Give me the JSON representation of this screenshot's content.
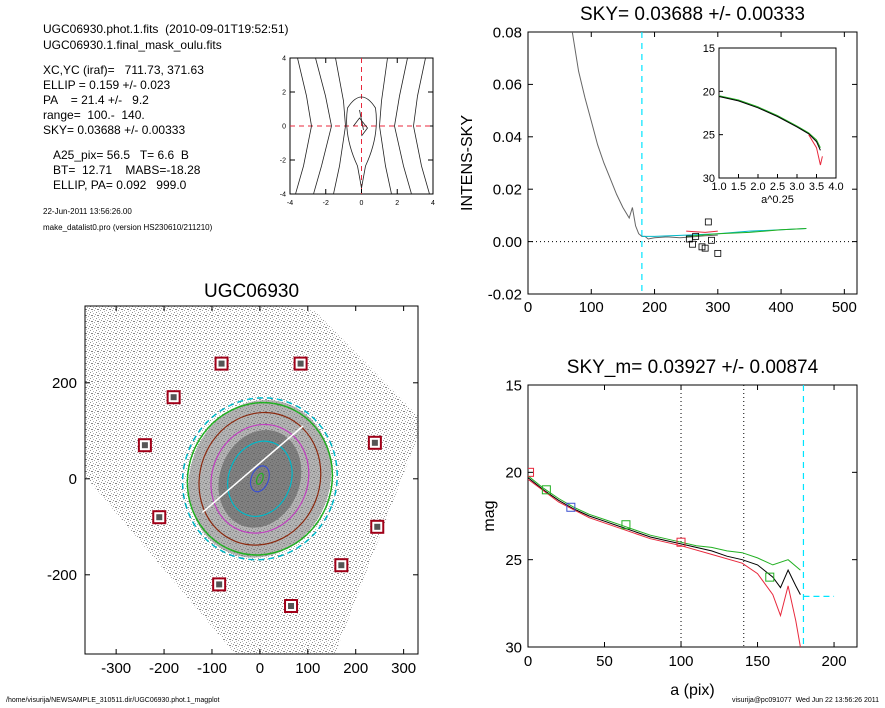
{
  "info": {
    "line1": "UGC06930.phot.1.fits  (2010-09-01T19:52:51)",
    "line2": "UGC06930.1.final_mask_oulu.fits",
    "line3": "XC,YC (iraf)=   711.73, 371.63",
    "line4": "ELLIP = 0.159 +/- 0.023",
    "line5": "PA    = 21.4 +/-   9.2",
    "line6": "range=  100.-  140.",
    "line7": "SKY= 0.03688 +/- 0.00333",
    "line8": "A25_pix= 56.5   T= 6.6  B",
    "line9": "BT=  12.71    MABS=-18.28",
    "line10": "ELLIP, PA= 0.092   999.0",
    "date": "22-Jun-2011 13:56:26.00",
    "program": "make_datalist0.pro (version HS230610/211210)"
  },
  "footer": {
    "left": "/home/visurija/NEWSAMPLE_310511.dir/UGC06930.phot.1_magplot",
    "right": "visurija@pc091077  Wed Jun 22 13:56:26 2011"
  },
  "colors": {
    "axis": "#000000",
    "cyan_dash": "#00e5ff",
    "red": "#e8283c",
    "green": "#22b022",
    "blue": "#3a50d0",
    "cyan": "#00b8c8",
    "brown": "#8b2a10",
    "magenta": "#c040c0",
    "grey": "#666666"
  },
  "chart_data": [
    {
      "id": "contour",
      "type": "line",
      "title": "",
      "xlim": [
        -4,
        4
      ],
      "ylim": [
        -4,
        4
      ],
      "xticks": [
        "-4",
        "-2",
        "0",
        "2",
        "4"
      ],
      "yticks": [
        "-4",
        "-2",
        "0",
        "2",
        "4"
      ],
      "grid": false,
      "reference_lines": {
        "x": 0,
        "y": 0,
        "color": "red",
        "style": "dashed"
      }
    },
    {
      "id": "sky",
      "type": "line",
      "title": "SKY= 0.03688 +/- 0.00333",
      "xlabel": "",
      "ylabel": "INTENS-SKY",
      "xlim": [
        0,
        520
      ],
      "ylim": [
        -0.02,
        0.08
      ],
      "xticks": [
        "0",
        "100",
        "200",
        "300",
        "400",
        "500"
      ],
      "yticks": [
        "-0.02",
        "0.00",
        "0.02",
        "0.04",
        "0.06",
        "0.08"
      ],
      "vline": 180,
      "hline": 0,
      "series": [
        {
          "color": "grey",
          "x": [
            70,
            80,
            90,
            100,
            110,
            120,
            130,
            140,
            150,
            160,
            165,
            170,
            175,
            180,
            185,
            190,
            200,
            220,
            240,
            260,
            280,
            300
          ],
          "y": [
            0.08,
            0.065,
            0.055,
            0.046,
            0.037,
            0.03,
            0.024,
            0.018,
            0.013,
            0.009,
            0.013,
            0.006,
            0.003,
            0.002,
            0.002,
            0.001,
            0.0015,
            0.0018,
            0.0015,
            0.0018,
            0.0022,
            0.0025
          ]
        },
        {
          "color": "cyan",
          "x": [
            180,
            200,
            250,
            300,
            350,
            400,
            440
          ],
          "y": [
            0.002,
            0.002,
            0.0025,
            0.003,
            0.004,
            0.0045,
            0.005
          ]
        },
        {
          "color": "red",
          "x": [
            250,
            280,
            300
          ],
          "y": [
            0.004,
            0.0035,
            0.004
          ]
        },
        {
          "color": "green",
          "x": [
            250,
            300,
            350,
            400,
            440
          ],
          "y": [
            0.002,
            0.003,
            0.0035,
            0.0045,
            0.005
          ]
        }
      ],
      "markers": {
        "x": [
          255,
          260,
          265,
          275,
          280,
          285,
          290,
          300
        ],
        "y": [
          0.001,
          -0.001,
          0.002,
          -0.002,
          -0.0025,
          0.0075,
          0.0005,
          -0.0045
        ]
      },
      "inset": {
        "xlabel": "a^0.25",
        "xlim": [
          1.0,
          4.0
        ],
        "ylim": [
          15,
          30
        ],
        "xticks": [
          "1.0",
          "1.5",
          "2.0",
          "2.5",
          "3.0",
          "3.5",
          "4.0"
        ],
        "yticks": [
          "15",
          "20",
          "25",
          "30"
        ],
        "series": [
          {
            "color": "green",
            "x": [
              1.0,
              1.5,
              2.0,
              2.5,
              3.0,
              3.3,
              3.5,
              3.6
            ],
            "y": [
              20.5,
              21.0,
              21.8,
              22.8,
              24.0,
              24.8,
              25.6,
              26.5
            ]
          },
          {
            "color": "black",
            "x": [
              1.0,
              1.5,
              2.0,
              2.5,
              3.0,
              3.3,
              3.5,
              3.6
            ],
            "y": [
              20.6,
              21.1,
              21.9,
              22.9,
              24.1,
              24.9,
              25.8,
              26.8
            ]
          },
          {
            "color": "red",
            "x": [
              3.3,
              3.5,
              3.6,
              3.65
            ],
            "y": [
              25.0,
              26.5,
              28.5,
              27.5
            ]
          }
        ]
      }
    },
    {
      "id": "image",
      "type": "scatter",
      "title": "UGC06930",
      "xlim": [
        -365,
        330
      ],
      "ylim": [
        -365,
        360
      ],
      "xticks": [
        "-300",
        "-200",
        "-100",
        "0",
        "100",
        "200",
        "300"
      ],
      "yticks": [
        "-200",
        "0",
        "200"
      ],
      "sky_boxes": {
        "x": [
          -80,
          85,
          -180,
          -240,
          240,
          -210,
          245,
          170,
          -85,
          65
        ],
        "y": [
          240,
          240,
          170,
          70,
          75,
          -80,
          -100,
          -180,
          -220,
          -265
        ]
      },
      "ellipses": [
        {
          "color": "cyan",
          "a": 160,
          "b": 170
        },
        {
          "color": "green",
          "a": 150,
          "b": 160
        },
        {
          "color": "brown",
          "a": 125,
          "b": 140
        },
        {
          "color": "magenta",
          "a": 100,
          "b": 115
        },
        {
          "color": "cyan",
          "a": 65,
          "b": 80
        },
        {
          "color": "blue",
          "a": 18,
          "b": 28
        },
        {
          "color": "green",
          "a": 6,
          "b": 12
        }
      ]
    },
    {
      "id": "mag",
      "type": "line",
      "title": "SKY_m=  0.03927 +/- 0.00874",
      "xlabel": "a (pix)",
      "ylabel": "mag",
      "xlim": [
        0,
        215
      ],
      "ylim": [
        30,
        15
      ],
      "xticks": [
        "0",
        "50",
        "100",
        "150",
        "200"
      ],
      "yticks": [
        "15",
        "20",
        "25",
        "30"
      ],
      "vlines_dotted": [
        100,
        141
      ],
      "vline_cyan": 180,
      "sky_level": {
        "x": [
          180,
          200
        ],
        "y": 27.1
      },
      "series": [
        {
          "color": "black",
          "x": [
            0,
            10,
            20,
            30,
            40,
            50,
            60,
            70,
            80,
            90,
            100,
            110,
            120,
            130,
            140,
            150,
            160,
            165,
            170,
            175,
            178
          ],
          "y": [
            20.3,
            21.0,
            21.6,
            22.1,
            22.5,
            22.8,
            23.1,
            23.4,
            23.7,
            23.9,
            24.1,
            24.3,
            24.5,
            24.8,
            25.0,
            25.3,
            26.0,
            26.6,
            25.6,
            26.5,
            27.0
          ]
        },
        {
          "color": "green",
          "x": [
            0,
            10,
            20,
            30,
            40,
            50,
            60,
            70,
            80,
            90,
            100,
            110,
            120,
            130,
            140,
            150,
            160,
            170,
            178
          ],
          "y": [
            20.2,
            20.9,
            21.5,
            22.0,
            22.4,
            22.7,
            23.0,
            23.3,
            23.6,
            23.8,
            24.0,
            24.2,
            24.3,
            24.5,
            24.6,
            24.9,
            25.3,
            25.0,
            25.6
          ]
        },
        {
          "color": "red",
          "x": [
            0,
            20,
            40,
            60,
            80,
            100,
            120,
            140,
            150,
            160,
            165,
            170,
            175,
            178
          ],
          "y": [
            20.4,
            21.7,
            22.6,
            23.2,
            23.8,
            24.2,
            24.7,
            25.2,
            25.8,
            27.0,
            28.2,
            26.5,
            28.5,
            30.0
          ]
        }
      ],
      "markers": [
        {
          "color": "red",
          "x": 1,
          "y": 20.0
        },
        {
          "color": "green",
          "x": 12,
          "y": 21.0
        },
        {
          "color": "blue",
          "x": 28,
          "y": 22.0
        },
        {
          "color": "green",
          "x": 64,
          "y": 23.0
        },
        {
          "color": "red",
          "x": 100,
          "y": 24.0
        },
        {
          "color": "green",
          "x": 158,
          "y": 26.0
        }
      ]
    }
  ]
}
